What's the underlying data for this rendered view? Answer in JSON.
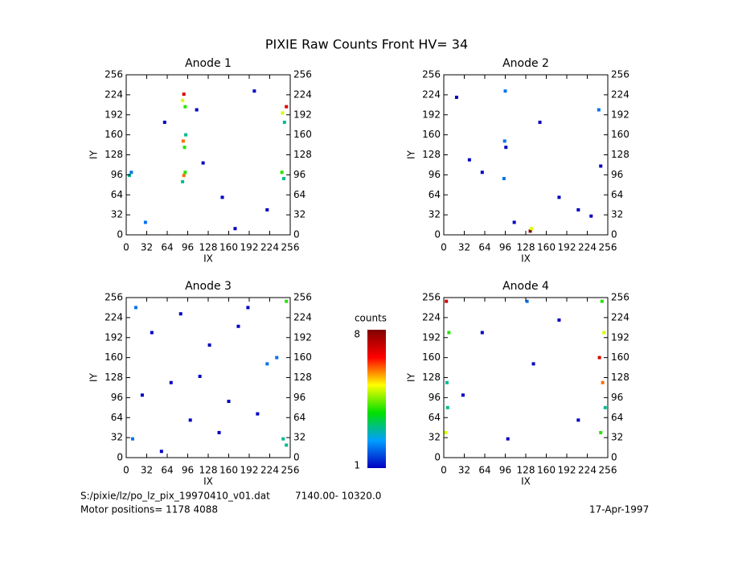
{
  "title": "PIXIE Raw Counts Front HV= 34",
  "footer": {
    "file": "S:/pixie/lz/po_lz_pix_19970410_v01.dat",
    "range": "7140.00- 10320.0",
    "motor": "Motor positions= 1178 4088",
    "date": "17-Apr-1997"
  },
  "colorbar": {
    "label": "counts",
    "clim": [
      1,
      8
    ],
    "ticks": [
      1,
      8
    ]
  },
  "chart_data": [
    {
      "type": "scatter",
      "title": "Anode 1",
      "xlabel": "IX",
      "ylabel": "IY",
      "xlim": [
        0,
        256
      ],
      "ylim": [
        0,
        256
      ],
      "xticks": [
        0,
        32,
        64,
        96,
        128,
        160,
        192,
        224,
        256
      ],
      "yticks": [
        0,
        32,
        64,
        96,
        128,
        160,
        192,
        224,
        256
      ],
      "x": [
        88,
        90,
        92,
        89,
        91,
        93,
        90,
        88,
        92,
        244,
        247,
        250,
        243,
        246,
        5,
        8,
        30,
        60,
        120,
        150,
        200,
        220,
        110,
        170
      ],
      "y": [
        215,
        225,
        205,
        150,
        140,
        160,
        95,
        85,
        100,
        195,
        180,
        205,
        100,
        90,
        95,
        100,
        20,
        180,
        115,
        60,
        230,
        40,
        200,
        10
      ],
      "counts": [
        5,
        7,
        4,
        6,
        4,
        3,
        6,
        3,
        4,
        5,
        3,
        7,
        4,
        3,
        3,
        2,
        2,
        1,
        1,
        1,
        1,
        1,
        1,
        1
      ]
    },
    {
      "type": "scatter",
      "title": "Anode 2",
      "xlabel": "IX",
      "ylabel": "IY",
      "xlim": [
        0,
        256
      ],
      "ylim": [
        0,
        256
      ],
      "xticks": [
        0,
        32,
        64,
        96,
        128,
        160,
        192,
        224,
        256
      ],
      "yticks": [
        0,
        32,
        64,
        96,
        128,
        160,
        192,
        224,
        256
      ],
      "x": [
        135,
        137,
        96,
        95,
        97,
        94,
        242,
        245,
        60,
        180,
        210,
        20,
        110,
        150,
        230,
        40
      ],
      "y": [
        6,
        10,
        230,
        150,
        140,
        90,
        200,
        110,
        100,
        60,
        40,
        220,
        20,
        180,
        30,
        120
      ],
      "counts": [
        8,
        5,
        2,
        2,
        1,
        2,
        2,
        1,
        1,
        1,
        1,
        1,
        1,
        1,
        1,
        1
      ]
    },
    {
      "type": "scatter",
      "title": "Anode 3",
      "xlabel": "IX",
      "ylabel": "IY",
      "xlim": [
        0,
        256
      ],
      "ylim": [
        0,
        256
      ],
      "xticks": [
        0,
        32,
        64,
        96,
        128,
        160,
        192,
        224,
        256
      ],
      "yticks": [
        0,
        32,
        64,
        96,
        128,
        160,
        192,
        224,
        256
      ],
      "x": [
        10,
        40,
        70,
        100,
        130,
        160,
        190,
        220,
        250,
        25,
        55,
        85,
        115,
        145,
        175,
        205,
        235,
        245,
        15,
        250
      ],
      "y": [
        30,
        200,
        120,
        60,
        180,
        90,
        240,
        150,
        20,
        100,
        10,
        230,
        130,
        40,
        210,
        70,
        160,
        30,
        240,
        250
      ],
      "counts": [
        2,
        1,
        1,
        1,
        1,
        1,
        1,
        2,
        3,
        1,
        1,
        1,
        1,
        1,
        1,
        1,
        2,
        3,
        2,
        4
      ]
    },
    {
      "type": "scatter",
      "title": "Anode 4",
      "xlabel": "IX",
      "ylabel": "IY",
      "xlim": [
        0,
        256
      ],
      "ylim": [
        0,
        256
      ],
      "xticks": [
        0,
        32,
        64,
        96,
        128,
        160,
        192,
        224,
        256
      ],
      "yticks": [
        0,
        32,
        64,
        96,
        128,
        160,
        192,
        224,
        256
      ],
      "x": [
        3,
        5,
        8,
        4,
        6,
        245,
        248,
        250,
        243,
        247,
        252,
        30,
        60,
        100,
        140,
        180,
        210,
        130
      ],
      "y": [
        40,
        120,
        200,
        250,
        80,
        40,
        120,
        200,
        160,
        250,
        80,
        100,
        200,
        30,
        150,
        220,
        60,
        250
      ],
      "counts": [
        5,
        3,
        4,
        7,
        3,
        4,
        6,
        5,
        7,
        4,
        3,
        1,
        1,
        1,
        1,
        1,
        1,
        2
      ]
    }
  ]
}
